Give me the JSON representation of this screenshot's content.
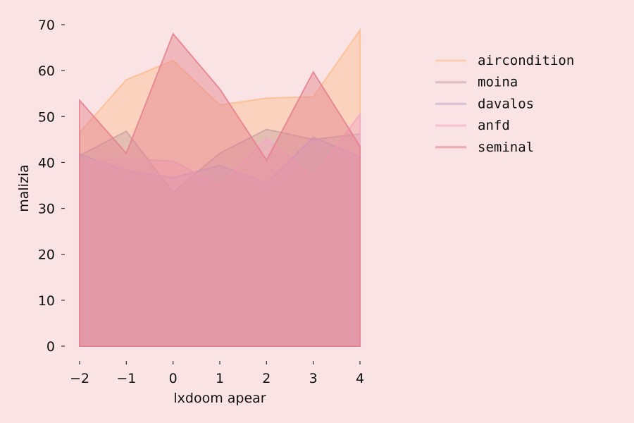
{
  "chart_data": {
    "type": "area",
    "xlabel": "lxdoom apear",
    "ylabel": "malizia",
    "xlim": [
      -2,
      4
    ],
    "ylim": [
      0,
      70
    ],
    "x": [
      -2,
      -1,
      0,
      1,
      2,
      3,
      4
    ],
    "x_ticks": [
      -2,
      -1,
      0,
      1,
      2,
      3,
      4
    ],
    "x_tick_labels": [
      "−2",
      "−1",
      "0",
      "1",
      "2",
      "3",
      "4"
    ],
    "y_ticks": [
      0,
      10,
      20,
      30,
      40,
      50,
      60,
      70
    ],
    "y_tick_labels": [
      "0",
      "10",
      "20",
      "30",
      "40",
      "50",
      "60",
      "70"
    ],
    "grid": false,
    "legend_position": "right",
    "series": [
      {
        "name": "aircondition",
        "values": [
          46.5,
          58.0,
          62.2,
          52.5,
          54.0,
          54.3,
          68.8
        ],
        "color": "#fbbd8f"
      },
      {
        "name": "moina",
        "values": [
          41.5,
          46.8,
          33.5,
          42.0,
          47.2,
          45.0,
          46.2
        ],
        "color": "#c9a3a7"
      },
      {
        "name": "davalos",
        "values": [
          41.8,
          38.2,
          36.7,
          39.3,
          35.5,
          45.5,
          41.2
        ],
        "color": "#c7a3cc"
      },
      {
        "name": "anfd",
        "values": [
          40.2,
          40.8,
          40.3,
          35.0,
          45.2,
          36.7,
          50.5
        ],
        "color": "#f2a9c4"
      },
      {
        "name": "seminal",
        "values": [
          53.5,
          42.0,
          68.0,
          56.0,
          40.5,
          59.7,
          43.5
        ],
        "color": "#e4808f"
      }
    ]
  }
}
